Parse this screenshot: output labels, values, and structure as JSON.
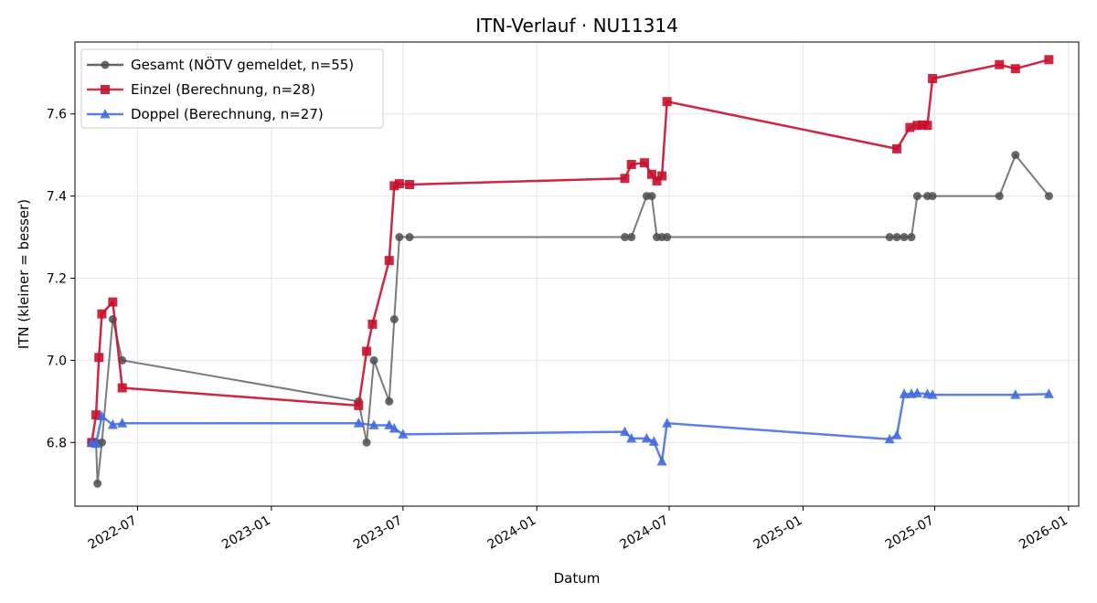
{
  "chart_data": {
    "type": "line",
    "title": "ITN-Verlauf · NU11314",
    "xlabel": "Datum",
    "ylabel": "ITN  (kleiner = besser)",
    "x_axis": "date",
    "xlim": [
      "2022-04-06",
      "2026-01-15"
    ],
    "ylim": [
      6.645,
      7.775
    ],
    "x_ticks": [
      "2022-07-01",
      "2023-01-01",
      "2023-07-01",
      "2024-01-01",
      "2024-07-01",
      "2025-01-01",
      "2025-07-01",
      "2026-01-01"
    ],
    "x_tick_labels": [
      "2022-07",
      "2023-01",
      "2023-07",
      "2024-01",
      "2024-07",
      "2025-01",
      "2025-07",
      "2026-01"
    ],
    "y_ticks": [
      6.8,
      7.0,
      7.2,
      7.4,
      7.6
    ],
    "y_tick_labels": [
      "6.8",
      "7.0",
      "7.2",
      "7.4",
      "7.6"
    ],
    "grid": true,
    "legend_position": "top-left",
    "series": [
      {
        "name": "Gesamt (NÖTV gemeldet, n=55)",
        "color": "#4d4d4d",
        "marker": "circle",
        "points": [
          [
            "2022-04-29",
            6.8
          ],
          [
            "2022-05-05",
            6.8
          ],
          [
            "2022-05-07",
            6.7
          ],
          [
            "2022-05-13",
            6.8
          ],
          [
            "2022-05-28",
            7.1
          ],
          [
            "2022-06-10",
            7.0
          ],
          [
            "2023-05-01",
            6.9
          ],
          [
            "2023-05-12",
            6.8
          ],
          [
            "2023-05-22",
            7.0
          ],
          [
            "2023-06-12",
            6.9
          ],
          [
            "2023-06-19",
            7.1
          ],
          [
            "2023-06-26",
            7.3
          ],
          [
            "2023-07-10",
            7.3
          ],
          [
            "2024-05-01",
            7.3
          ],
          [
            "2024-05-10",
            7.3
          ],
          [
            "2024-05-31",
            7.4
          ],
          [
            "2024-06-07",
            7.4
          ],
          [
            "2024-06-14",
            7.3
          ],
          [
            "2024-06-21",
            7.3
          ],
          [
            "2024-06-28",
            7.3
          ],
          [
            "2025-04-30",
            7.3
          ],
          [
            "2025-05-10",
            7.3
          ],
          [
            "2025-05-20",
            7.3
          ],
          [
            "2025-05-30",
            7.3
          ],
          [
            "2025-06-07",
            7.4
          ],
          [
            "2025-06-21",
            7.4
          ],
          [
            "2025-06-28",
            7.4
          ],
          [
            "2025-09-28",
            7.4
          ],
          [
            "2025-10-20",
            7.5
          ],
          [
            "2025-12-05",
            7.4
          ]
        ]
      },
      {
        "name": "Einzel (Berechnung, n=28)",
        "color": "#c8102e",
        "marker": "square",
        "points": [
          [
            "2022-04-29",
            6.8
          ],
          [
            "2022-05-05",
            6.867
          ],
          [
            "2022-05-09",
            7.007
          ],
          [
            "2022-05-13",
            7.113
          ],
          [
            "2022-05-28",
            7.142
          ],
          [
            "2022-06-10",
            6.933
          ],
          [
            "2023-05-01",
            6.89
          ],
          [
            "2023-05-12",
            7.022
          ],
          [
            "2023-05-20",
            7.088
          ],
          [
            "2023-06-12",
            7.243
          ],
          [
            "2023-06-19",
            7.425
          ],
          [
            "2023-06-26",
            7.43
          ],
          [
            "2023-07-10",
            7.428
          ],
          [
            "2024-05-01",
            7.443
          ],
          [
            "2024-05-10",
            7.477
          ],
          [
            "2024-05-28",
            7.481
          ],
          [
            "2024-06-07",
            7.453
          ],
          [
            "2024-06-14",
            7.437
          ],
          [
            "2024-06-21",
            7.449
          ],
          [
            "2024-06-28",
            7.63
          ],
          [
            "2025-05-10",
            7.515
          ],
          [
            "2025-05-28",
            7.567
          ],
          [
            "2025-06-07",
            7.572
          ],
          [
            "2025-06-14",
            7.573
          ],
          [
            "2025-06-21",
            7.572
          ],
          [
            "2025-06-28",
            7.686
          ],
          [
            "2025-09-28",
            7.72
          ],
          [
            "2025-10-20",
            7.71
          ],
          [
            "2025-12-05",
            7.732
          ]
        ]
      },
      {
        "name": "Doppel (Berechnung, n=27)",
        "color": "#4169e1",
        "marker": "triangle",
        "points": [
          [
            "2022-04-29",
            6.8
          ],
          [
            "2022-05-05",
            6.797
          ],
          [
            "2022-05-13",
            6.864
          ],
          [
            "2022-05-28",
            6.843
          ],
          [
            "2022-06-10",
            6.847
          ],
          [
            "2023-05-01",
            6.847
          ],
          [
            "2023-05-22",
            6.842
          ],
          [
            "2023-06-12",
            6.842
          ],
          [
            "2023-06-19",
            6.834
          ],
          [
            "2023-07-01",
            6.82
          ],
          [
            "2024-05-01",
            6.826
          ],
          [
            "2024-05-10",
            6.81
          ],
          [
            "2024-05-31",
            6.81
          ],
          [
            "2024-06-10",
            6.802
          ],
          [
            "2024-06-21",
            6.754
          ],
          [
            "2024-06-28",
            6.847
          ],
          [
            "2025-04-30",
            6.808
          ],
          [
            "2025-05-10",
            6.818
          ],
          [
            "2025-05-20",
            6.918
          ],
          [
            "2025-05-30",
            6.918
          ],
          [
            "2025-06-07",
            6.92
          ],
          [
            "2025-06-21",
            6.918
          ],
          [
            "2025-06-28",
            6.916
          ],
          [
            "2025-10-20",
            6.916
          ],
          [
            "2025-12-05",
            6.918
          ]
        ]
      }
    ]
  }
}
